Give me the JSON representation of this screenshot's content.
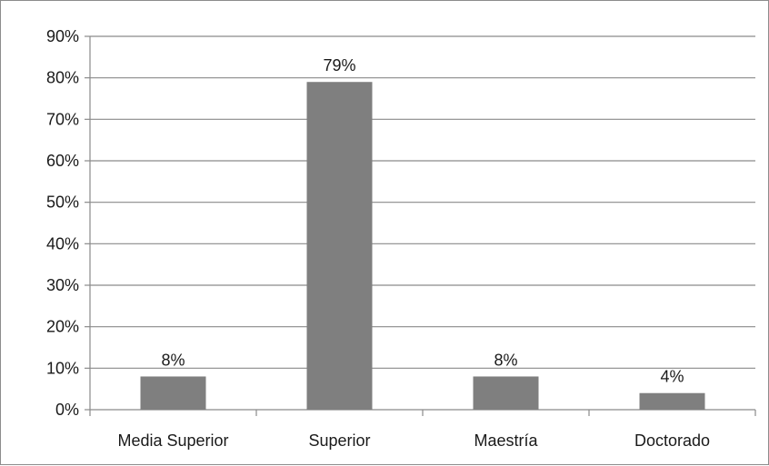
{
  "chart_data": {
    "type": "bar",
    "categories": [
      "Media Superior",
      "Superior",
      "Maestría",
      "Doctorado"
    ],
    "values": [
      8,
      79,
      8,
      4
    ],
    "data_labels": [
      "8%",
      "79%",
      "8%",
      "4%"
    ],
    "ylim": [
      0,
      90
    ],
    "yticks": [
      0,
      10,
      20,
      30,
      40,
      50,
      60,
      70,
      80,
      90
    ],
    "ytick_labels": [
      "0%",
      "10%",
      "20%",
      "30%",
      "40%",
      "50%",
      "60%",
      "70%",
      "80%",
      "90%"
    ],
    "grid": true,
    "legend": "none",
    "title": "",
    "xlabel": "",
    "ylabel": "",
    "colors": {
      "bar": "#7f7f7f",
      "grid": "#8a8a8a",
      "axis": "#8a8a8a",
      "frame": "#8c8c8c"
    }
  }
}
